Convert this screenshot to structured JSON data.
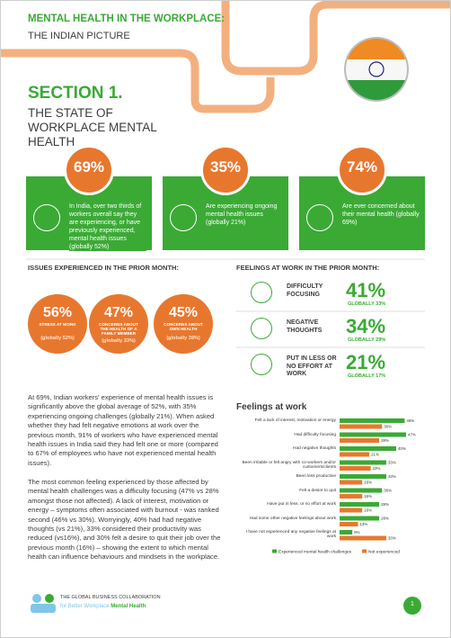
{
  "header": {
    "title": "MENTAL HEALTH IN THE WORKPLACE:",
    "subtitle": "THE INDIAN PICTURE"
  },
  "section": {
    "number": "SECTION 1.",
    "title": "THE STATE OF WORKPLACE MENTAL HEALTH"
  },
  "stats": [
    {
      "value": "69%",
      "text": "In India, over two thirds of workers overall say they are experiencing, or have previously experienced, mental health issues (globally 52%)"
    },
    {
      "value": "35%",
      "text": "Are experiencing ongoing mental health issues (globally 21%)"
    },
    {
      "value": "74%",
      "text": "Are ever concerned about their mental health (globally 69%)"
    }
  ],
  "issues": {
    "title": "ISSUES EXPERIENCED IN THE PRIOR MONTH:",
    "items": [
      {
        "value": "56%",
        "label": "STRESS AT WORK",
        "global": "(globally 52%)"
      },
      {
        "value": "47%",
        "label": "CONCERNS ABOUT THE HEALTH OF A FAMILY MEMBER",
        "global": "(globally 33%)"
      },
      {
        "value": "45%",
        "label": "CONCERNS ABOUT OWN HEALTH",
        "global": "(globally 39%)"
      }
    ]
  },
  "feelings": {
    "title": "FEELINGS AT WORK IN THE PRIOR MONTH:",
    "items": [
      {
        "label": "DIFFICULTY FOCUSING",
        "value": "41%",
        "global": "GLOBALLY 33%"
      },
      {
        "label": "NEGATIVE THOUGHTS",
        "value": "34%",
        "global": "GLOBALLY 29%"
      },
      {
        "label": "PUT IN LESS OR NO EFFORT AT WORK",
        "value": "21%",
        "global": "GLOBALLY 17%"
      }
    ]
  },
  "paragraphs": [
    "At 69%, Indian workers' experience of mental health issues is significantly above the global average of 52%, with 35% experiencing ongoing challenges (globally 21%). When asked whether they had felt negative emotions at work over the previous month, 91% of workers who have experienced mental health issues in India said they had felt one or more (compared to 67% of employees who have not experienced mental health issues).",
    "The most common feeling experienced by those affected by mental health challenges was a difficulty focusing (47% vs 28% amongst those not affected). A lack of interest, motivation or energy – symptoms often associated with burnout - was ranked second (46% vs 30%). Worryingly, 40% had had negative thoughts (vs 21%), 33% considered their productivity was reduced (vs16%), and 30% felt a desire to quit their job over the previous month (16%) – showing the extent to which mental health can influence behaviours and mindsets in the workplace."
  ],
  "chart_data": {
    "type": "bar",
    "orientation": "horizontal",
    "title": "Feelings at work",
    "categories": [
      "Felt a lack of interest, motivation or energy",
      "Had difficulty focusing",
      "Had negative thoughts",
      "Been irritable or felt angry with co-workers and/or customers/clients",
      "Been less productive",
      "Felt a desire to quit",
      "Have put in less, or no effort at work",
      "Had some other negative feelings about work",
      "I have not experienced any negative feelings at work"
    ],
    "series": [
      {
        "name": "Experienced mental health challenges",
        "color": "#3aaa35",
        "values": [
          46,
          47,
          40,
          33,
          33,
          30,
          28,
          28,
          9
        ],
        "value_labels": [
          "46%",
          "47%",
          "40%",
          "33%",
          "33%",
          "30%",
          "28%",
          "28%",
          "9%"
        ]
      },
      {
        "name": "Not experienced",
        "color": "#e8772e",
        "values": [
          30,
          28,
          21,
          22,
          16,
          16,
          16,
          13,
          33
        ],
        "value_labels": [
          "30%",
          "28%",
          "21%",
          "22%",
          "16%",
          "16%",
          "16%",
          "13%",
          "33%"
        ]
      }
    ]
  },
  "footer": {
    "org": "THE GLOBAL BUSINESS COLLABORATION",
    "tagline": "for Better Workplace",
    "tagline_bold": "Mental Health",
    "page": "1"
  }
}
